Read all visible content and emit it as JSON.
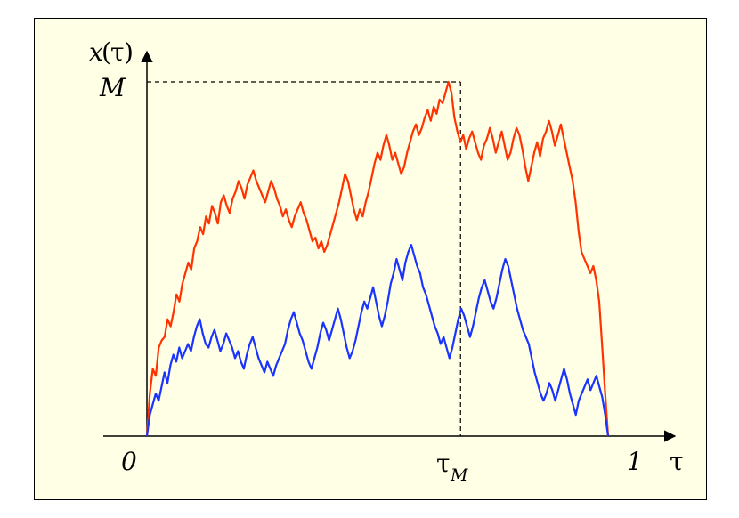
{
  "labels": {
    "y_axis_var": "x",
    "y_axis_open": "(",
    "y_axis_tau": "τ",
    "y_axis_close": ")",
    "max_label": "M",
    "origin_label": "0",
    "end_label": "1",
    "x_axis_label": "τ",
    "argmax_tau": "τ",
    "argmax_sub": "M"
  },
  "colors": {
    "background": "#ffffe6",
    "upper_path": "#ff3300",
    "lower_path": "#1a33ff",
    "axes": "#000000"
  },
  "chart_data": {
    "type": "line",
    "xlim": [
      0,
      1
    ],
    "ylim": [
      0,
      1
    ],
    "tau_max": 0.68,
    "max_value": 1.0,
    "series": [
      {
        "values": [
          0.0,
          0.12,
          0.19,
          0.17,
          0.25,
          0.27,
          0.28,
          0.33,
          0.31,
          0.35,
          0.4,
          0.38,
          0.43,
          0.46,
          0.49,
          0.47,
          0.53,
          0.55,
          0.59,
          0.57,
          0.62,
          0.6,
          0.65,
          0.63,
          0.6,
          0.66,
          0.68,
          0.65,
          0.63,
          0.67,
          0.69,
          0.72,
          0.7,
          0.67,
          0.71,
          0.73,
          0.75,
          0.72,
          0.7,
          0.68,
          0.66,
          0.69,
          0.72,
          0.7,
          0.67,
          0.65,
          0.62,
          0.64,
          0.61,
          0.59,
          0.62,
          0.64,
          0.66,
          0.63,
          0.61,
          0.58,
          0.55,
          0.56,
          0.53,
          0.55,
          0.52,
          0.54,
          0.57,
          0.6,
          0.63,
          0.66,
          0.7,
          0.74,
          0.72,
          0.68,
          0.64,
          0.61,
          0.64,
          0.62,
          0.66,
          0.69,
          0.73,
          0.77,
          0.8,
          0.78,
          0.82,
          0.85,
          0.82,
          0.78,
          0.8,
          0.77,
          0.74,
          0.76,
          0.8,
          0.83,
          0.86,
          0.88,
          0.85,
          0.87,
          0.9,
          0.92,
          0.89,
          0.93,
          0.91,
          0.95,
          0.94,
          0.97,
          1.0,
          0.97,
          0.9,
          0.86,
          0.83,
          0.85,
          0.81,
          0.84,
          0.86,
          0.83,
          0.8,
          0.78,
          0.82,
          0.84,
          0.87,
          0.84,
          0.8,
          0.83,
          0.86,
          0.82,
          0.78,
          0.8,
          0.84,
          0.87,
          0.85,
          0.81,
          0.76,
          0.72,
          0.76,
          0.8,
          0.83,
          0.79,
          0.84,
          0.86,
          0.89,
          0.86,
          0.82,
          0.85,
          0.88,
          0.84,
          0.8,
          0.76,
          0.72,
          0.66,
          0.58,
          0.52,
          0.5,
          0.48,
          0.46,
          0.48,
          0.44,
          0.38,
          0.25,
          0.12,
          0.0
        ]
      },
      {
        "values": [
          0.0,
          0.06,
          0.09,
          0.12,
          0.1,
          0.14,
          0.18,
          0.15,
          0.2,
          0.23,
          0.21,
          0.25,
          0.22,
          0.24,
          0.26,
          0.24,
          0.28,
          0.31,
          0.33,
          0.29,
          0.26,
          0.25,
          0.28,
          0.3,
          0.27,
          0.24,
          0.26,
          0.29,
          0.27,
          0.25,
          0.22,
          0.24,
          0.21,
          0.19,
          0.23,
          0.26,
          0.28,
          0.25,
          0.22,
          0.2,
          0.18,
          0.21,
          0.19,
          0.17,
          0.2,
          0.22,
          0.24,
          0.26,
          0.3,
          0.33,
          0.35,
          0.32,
          0.29,
          0.27,
          0.24,
          0.21,
          0.19,
          0.22,
          0.25,
          0.29,
          0.32,
          0.3,
          0.27,
          0.3,
          0.33,
          0.36,
          0.33,
          0.29,
          0.25,
          0.22,
          0.24,
          0.27,
          0.31,
          0.35,
          0.38,
          0.36,
          0.39,
          0.42,
          0.38,
          0.34,
          0.31,
          0.34,
          0.38,
          0.43,
          0.46,
          0.5,
          0.47,
          0.44,
          0.49,
          0.52,
          0.54,
          0.51,
          0.48,
          0.46,
          0.42,
          0.4,
          0.37,
          0.34,
          0.31,
          0.29,
          0.26,
          0.28,
          0.25,
          0.22,
          0.25,
          0.29,
          0.33,
          0.36,
          0.34,
          0.31,
          0.28,
          0.31,
          0.35,
          0.39,
          0.42,
          0.44,
          0.41,
          0.38,
          0.36,
          0.39,
          0.43,
          0.47,
          0.5,
          0.48,
          0.44,
          0.4,
          0.36,
          0.33,
          0.3,
          0.28,
          0.26,
          0.22,
          0.18,
          0.15,
          0.12,
          0.1,
          0.12,
          0.15,
          0.13,
          0.1,
          0.13,
          0.16,
          0.19,
          0.16,
          0.12,
          0.09,
          0.06,
          0.1,
          0.12,
          0.14,
          0.16,
          0.13,
          0.15,
          0.17,
          0.14,
          0.11,
          0.06,
          0.0
        ]
      }
    ]
  }
}
